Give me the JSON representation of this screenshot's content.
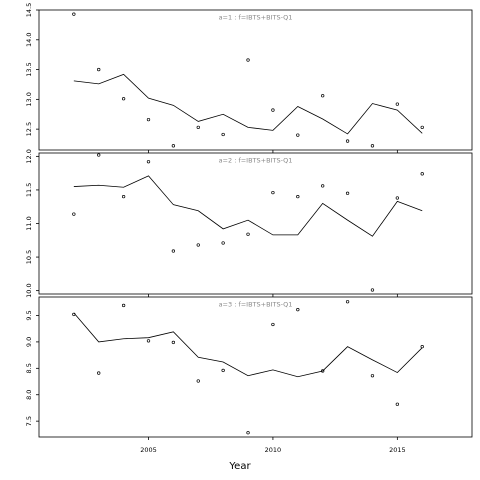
{
  "chart_data": {
    "type": "line",
    "xlabel": "Year",
    "x_ticks": [
      2005,
      2010,
      2015
    ],
    "xlim": [
      2000.6,
      2018.0
    ],
    "colors": {
      "line": "#000000",
      "points": "#000000",
      "frame": "#000000",
      "panel_title": "#888888"
    },
    "panels": [
      {
        "title": "a=1  :  f=IBTS+BITS-Q1",
        "ylim": [
          12.15,
          14.5
        ],
        "y_ticks": [
          12.5,
          13.0,
          13.5,
          14.0,
          14.5
        ],
        "y_tick_labels": [
          "12.5",
          "13.0",
          "13.5",
          "14.0",
          "14.5"
        ],
        "series": [
          {
            "kind": "line",
            "x": [
              2002,
              2003,
              2004,
              2005,
              2006,
              2007,
              2008,
              2009,
              2010,
              2011,
              2012,
              2013,
              2014,
              2015,
              2016
            ],
            "y": [
              13.31,
              13.26,
              13.42,
              13.02,
              12.9,
              12.63,
              12.75,
              12.53,
              12.48,
              12.88,
              12.67,
              12.42,
              12.93,
              12.82,
              12.43
            ]
          },
          {
            "kind": "points",
            "x": [
              2002,
              2003,
              2004,
              2005,
              2006,
              2007,
              2008,
              2009,
              2010,
              2011,
              2012,
              2013,
              2014,
              2015,
              2016
            ],
            "y": [
              14.43,
              13.5,
              13.01,
              12.66,
              12.22,
              12.53,
              12.41,
              13.66,
              12.82,
              12.4,
              13.06,
              12.3,
              12.22,
              12.92,
              12.53
            ]
          }
        ]
      },
      {
        "title": "a=2  :  f=IBTS+BITS-Q1",
        "ylim": [
          9.95,
          12.05
        ],
        "y_ticks": [
          10.0,
          10.5,
          11.0,
          11.5,
          12.0
        ],
        "y_tick_labels": [
          "10.0",
          "10.5",
          "11.0",
          "11.5",
          "12.0"
        ],
        "series": [
          {
            "kind": "line",
            "x": [
              2002,
              2003,
              2004,
              2005,
              2006,
              2007,
              2008,
              2009,
              2010,
              2011,
              2012,
              2013,
              2014,
              2015,
              2016
            ],
            "y": [
              11.55,
              11.57,
              11.54,
              11.71,
              11.28,
              11.19,
              10.92,
              11.05,
              10.83,
              10.83,
              11.3,
              11.05,
              10.81,
              11.33,
              11.19
            ]
          },
          {
            "kind": "points",
            "x": [
              2002,
              2003,
              2004,
              2005,
              2006,
              2007,
              2008,
              2009,
              2010,
              2011,
              2012,
              2013,
              2014,
              2015,
              2016
            ],
            "y": [
              11.14,
              12.02,
              11.4,
              11.92,
              10.59,
              10.68,
              10.71,
              10.84,
              11.46,
              11.4,
              11.56,
              11.45,
              10.01,
              11.38,
              11.74
            ]
          }
        ]
      },
      {
        "title": "a=3  :  f=IBTS+BITS-Q1",
        "ylim": [
          7.2,
          9.85
        ],
        "y_ticks": [
          7.5,
          8.0,
          8.5,
          9.0,
          9.5
        ],
        "y_tick_labels": [
          "7.5",
          "8.0",
          "8.5",
          "9.0",
          "9.5"
        ],
        "series": [
          {
            "kind": "line",
            "x": [
              2002,
              2003,
              2004,
              2005,
              2006,
              2007,
              2008,
              2009,
              2010,
              2011,
              2012,
              2013,
              2014,
              2015,
              2016
            ],
            "y": [
              9.55,
              9.0,
              9.06,
              9.08,
              9.19,
              8.71,
              8.62,
              8.36,
              8.47,
              8.34,
              8.45,
              8.91,
              8.66,
              8.42,
              8.89
            ]
          },
          {
            "kind": "points",
            "x": [
              2002,
              2003,
              2004,
              2005,
              2006,
              2007,
              2008,
              2009,
              2010,
              2011,
              2012,
              2013,
              2014,
              2015,
              2016
            ],
            "y": [
              9.52,
              8.41,
              9.69,
              9.02,
              8.99,
              8.26,
              8.46,
              7.28,
              9.33,
              9.61,
              8.45,
              9.76,
              8.36,
              7.82,
              8.91
            ]
          }
        ]
      }
    ]
  }
}
